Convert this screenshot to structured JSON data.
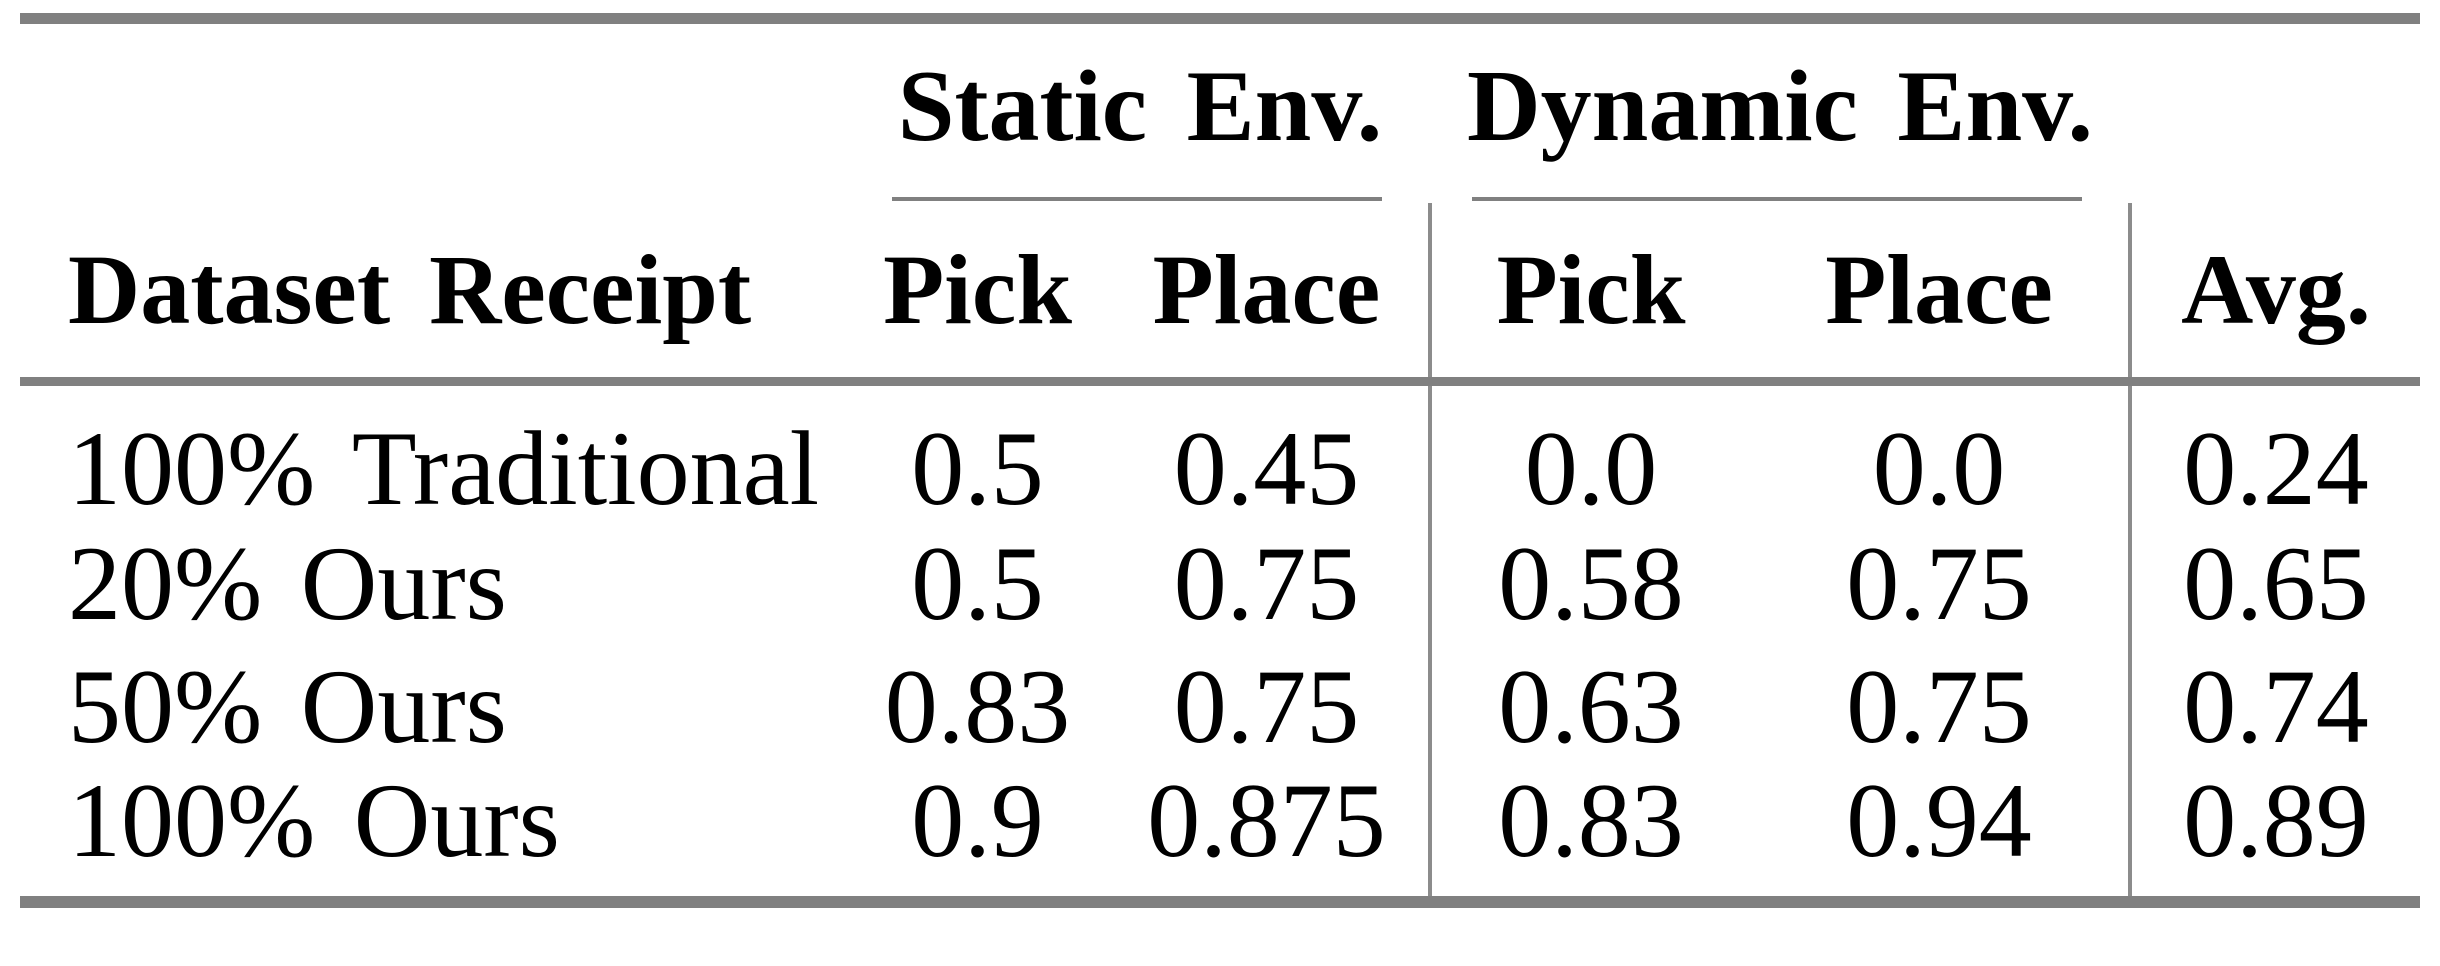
{
  "theme": {
    "rule-color": "#808080",
    "divider-color": "#8c8c8c",
    "text-color": "#000000",
    "bg-color": "#ffffff"
  },
  "table": {
    "group_headers": {
      "static": "Static Env.",
      "dynamic": "Dynamic Env."
    },
    "column_headers": {
      "row_label": "Dataset Receipt",
      "static_pick": "Pick",
      "static_place": "Place",
      "dynamic_pick": "Pick",
      "dynamic_place": "Place",
      "avg": "Avg."
    },
    "rows": [
      {
        "label": "100% Traditional",
        "static_pick": "0.5",
        "static_place": "0.45",
        "dynamic_pick": "0.0",
        "dynamic_place": "0.0",
        "avg": "0.24"
      },
      {
        "label": "20% Ours",
        "static_pick": "0.5",
        "static_place": "0.75",
        "dynamic_pick": "0.58",
        "dynamic_place": "0.75",
        "avg": "0.65"
      },
      {
        "label": "50% Ours",
        "static_pick": "0.83",
        "static_place": "0.75",
        "dynamic_pick": "0.63",
        "dynamic_place": "0.75",
        "avg": "0.74"
      },
      {
        "label": "100% Ours",
        "static_pick": "0.9",
        "static_place": "0.875",
        "dynamic_pick": "0.83",
        "dynamic_place": "0.94",
        "avg": "0.89"
      }
    ]
  },
  "chart_data": {
    "type": "table",
    "title": "",
    "column_groups": [
      "",
      "Static Env.",
      "Static Env.",
      "Dynamic Env.",
      "Dynamic Env.",
      ""
    ],
    "columns": [
      "Dataset Receipt",
      "Pick",
      "Place",
      "Pick",
      "Place",
      "Avg."
    ],
    "rows": [
      [
        "100% Traditional",
        0.5,
        0.45,
        0.0,
        0.0,
        0.24
      ],
      [
        "20% Ours",
        0.5,
        0.75,
        0.58,
        0.75,
        0.65
      ],
      [
        "50% Ours",
        0.83,
        0.75,
        0.63,
        0.75,
        0.74
      ],
      [
        "100% Ours",
        0.9,
        0.875,
        0.83,
        0.94,
        0.89
      ]
    ]
  }
}
